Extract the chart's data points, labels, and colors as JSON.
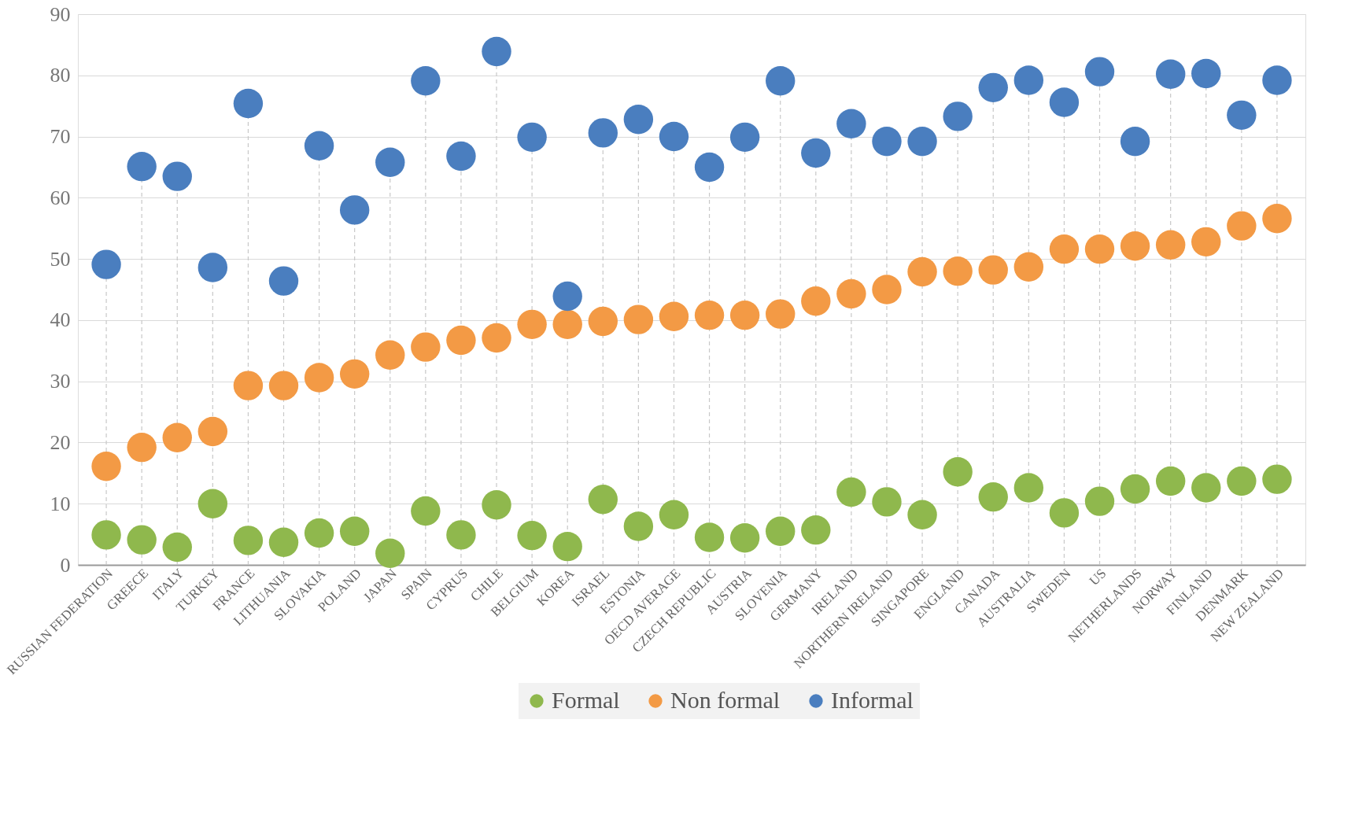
{
  "chart_data": {
    "type": "scatter",
    "categories": [
      "RUSSIAN FEDERATION",
      "GREECE",
      "ITALY",
      "TURKEY",
      "FRANCE",
      "LITHUANIA",
      "SLOVAKIA",
      "POLAND",
      "JAPAN",
      "SPAIN",
      "CYPRUS",
      "CHILE",
      "BELGIUM",
      "KOREA",
      "ISRAEL",
      "ESTONIA",
      "OECD AVERAGE",
      "CZECH REPUBLIC",
      "AUSTRIA",
      "SLOVENIA",
      "GERMANY",
      "IRELAND",
      "NORTHERN IRELAND",
      "SINGAPORE",
      "ENGLAND",
      "CANADA",
      "AUSTRALIA",
      "SWEDEN",
      "US",
      "NETHERLANDS",
      "NORWAY",
      "FINLAND",
      "DENMARK",
      "NEW ZEALAND"
    ],
    "series": [
      {
        "name": "Formal",
        "color": "#8fb84d",
        "values": [
          4.9,
          4.1,
          2.9,
          10.0,
          4.0,
          3.7,
          5.2,
          5.5,
          1.9,
          8.8,
          4.9,
          9.8,
          4.8,
          3.0,
          10.7,
          6.3,
          8.2,
          4.5,
          4.4,
          5.5,
          5.7,
          11.9,
          10.3,
          8.2,
          15.2,
          11.1,
          12.6,
          8.5,
          10.4,
          12.4,
          13.7,
          12.6,
          13.7,
          14.0
        ]
      },
      {
        "name": "Non formal",
        "color": "#f39a45",
        "values": [
          16.1,
          19.2,
          20.8,
          21.8,
          29.3,
          29.3,
          30.6,
          31.2,
          34.3,
          35.6,
          36.7,
          37.1,
          39.3,
          39.3,
          39.8,
          40.1,
          40.6,
          40.8,
          40.8,
          41.0,
          43.1,
          44.3,
          45.0,
          47.9,
          48.0,
          48.2,
          48.7,
          51.6,
          51.6,
          52.1,
          52.3,
          52.8,
          55.4,
          56.6
        ]
      },
      {
        "name": "Informal",
        "color": "#4a7ebf",
        "values": [
          49.1,
          65.1,
          63.5,
          48.6,
          75.4,
          46.4,
          68.5,
          58.0,
          65.8,
          79.1,
          66.8,
          83.9,
          69.9,
          43.9,
          70.6,
          72.8,
          70.0,
          65.0,
          69.9,
          79.1,
          67.3,
          72.1,
          69.2,
          69.2,
          73.3,
          78.0,
          79.2,
          75.6,
          80.6,
          69.2,
          80.2,
          80.3,
          73.5,
          79.2
        ]
      }
    ],
    "ylim": [
      0,
      90
    ],
    "yticks": [
      0,
      10,
      20,
      30,
      40,
      50,
      60,
      70,
      80,
      90
    ],
    "grid": true,
    "legend": "bottom",
    "marker": "circle"
  }
}
